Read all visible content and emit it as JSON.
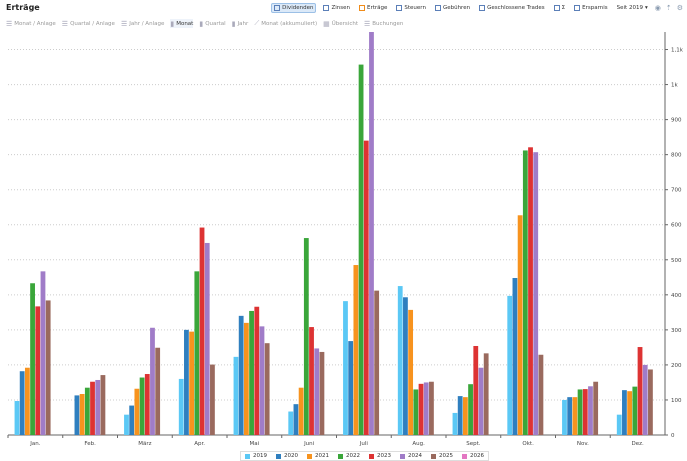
{
  "title": "Erträge",
  "toolbar": {
    "items": [
      {
        "label": "Dividenden",
        "active": true
      },
      {
        "label": "Zinsen"
      },
      {
        "label": "Erträge",
        "highlight": true
      },
      {
        "label": "Steuern"
      },
      {
        "label": "Gebühren"
      },
      {
        "label": "Geschlossene Trades"
      },
      {
        "label": "Σ"
      },
      {
        "label": "Ersparnis"
      }
    ],
    "since": "Seit 2019",
    "icons": [
      "layers-icon",
      "export-icon",
      "gear-icon"
    ]
  },
  "views": [
    {
      "label": "Monat / Anlage"
    },
    {
      "label": "Quartal / Anlage"
    },
    {
      "label": "Jahr / Anlage"
    },
    {
      "label": "Monat",
      "active": true
    },
    {
      "label": "Quartal"
    },
    {
      "label": "Jahr"
    },
    {
      "label": "Monat (akkumuliert)"
    },
    {
      "label": "Übersicht"
    },
    {
      "label": "Buchungen"
    }
  ],
  "chart_data": {
    "type": "bar",
    "categories": [
      "Jan.",
      "Feb.",
      "März",
      "Apr.",
      "Mai",
      "Juni",
      "Juli",
      "Aug.",
      "Sept.",
      "Okt.",
      "Nov.",
      "Dez."
    ],
    "ylim": [
      0,
      1150
    ],
    "yticks": [
      0,
      100,
      200,
      300,
      400,
      500,
      600,
      700,
      800,
      900,
      1000,
      1100
    ],
    "ytick_labels": [
      "0",
      "100",
      "200",
      "300",
      "400",
      "500",
      "600",
      "700",
      "800",
      "900",
      "1k",
      "1,1k"
    ],
    "grid": true,
    "legend": "bottom",
    "series": [
      {
        "name": "2019",
        "color": "#5bc8f5",
        "values": [
          97,
          0,
          58,
          160,
          223,
          67,
          382,
          425,
          63,
          397,
          100,
          58
        ]
      },
      {
        "name": "2020",
        "color": "#2f7fbf",
        "values": [
          182,
          113,
          84,
          300,
          340,
          88,
          268,
          393,
          111,
          448,
          108,
          128
        ]
      },
      {
        "name": "2021",
        "color": "#f7931e",
        "values": [
          192,
          117,
          132,
          295,
          320,
          135,
          485,
          357,
          108,
          627,
          108,
          125
        ]
      },
      {
        "name": "2022",
        "color": "#3aa63a",
        "values": [
          433,
          135,
          164,
          467,
          354,
          562,
          1057,
          130,
          145,
          812,
          130,
          138
        ]
      },
      {
        "name": "2023",
        "color": "#dd3333",
        "values": [
          367,
          152,
          174,
          592,
          366,
          308,
          840,
          146,
          254,
          821,
          131,
          251
        ]
      },
      {
        "name": "2024",
        "color": "#a07cc8",
        "values": [
          467,
          157,
          306,
          548,
          310,
          247,
          1150,
          150,
          192,
          807,
          139,
          200
        ]
      },
      {
        "name": "2025",
        "color": "#9a6a5e",
        "values": [
          384,
          171,
          249,
          201,
          262,
          237,
          412,
          152,
          233,
          229,
          152,
          187
        ]
      },
      {
        "name": "2026",
        "color": "#e377c2",
        "values": [
          0,
          0,
          0,
          0,
          0,
          0,
          0,
          0,
          0,
          0,
          0,
          0
        ]
      }
    ]
  }
}
